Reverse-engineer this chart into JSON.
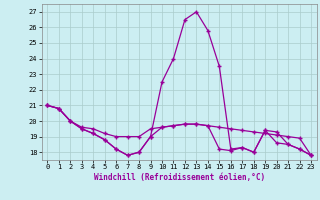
{
  "xlabel": "Windchill (Refroidissement éolien,°C)",
  "background_color": "#cceef2",
  "grid_color": "#aacccc",
  "line_color": "#990099",
  "xlim": [
    -0.5,
    23.5
  ],
  "ylim": [
    17.5,
    27.5
  ],
  "yticks": [
    18,
    19,
    20,
    21,
    22,
    23,
    24,
    25,
    26,
    27
  ],
  "xticks": [
    0,
    1,
    2,
    3,
    4,
    5,
    6,
    7,
    8,
    9,
    10,
    11,
    12,
    13,
    14,
    15,
    16,
    17,
    18,
    19,
    20,
    21,
    22,
    23
  ],
  "series1_x": [
    0,
    1,
    2,
    3,
    4,
    5,
    6,
    7,
    8,
    9,
    10,
    11,
    12,
    13,
    14,
    15,
    16,
    17,
    18,
    19,
    20,
    21,
    22,
    23
  ],
  "series1_y": [
    21.0,
    20.8,
    20.0,
    19.6,
    19.5,
    19.2,
    19.0,
    19.0,
    19.0,
    19.5,
    19.6,
    19.7,
    19.8,
    19.8,
    19.7,
    19.6,
    19.5,
    19.4,
    19.3,
    19.2,
    19.1,
    19.0,
    18.9,
    17.8
  ],
  "series2_x": [
    0,
    1,
    2,
    3,
    4,
    5,
    6,
    7,
    8,
    9,
    10,
    11,
    12,
    13,
    14,
    15,
    16,
    17,
    18,
    19,
    20,
    21,
    22,
    23
  ],
  "series2_y": [
    21.0,
    20.8,
    20.0,
    19.5,
    19.2,
    18.8,
    18.2,
    17.8,
    18.0,
    19.0,
    19.6,
    19.7,
    19.8,
    19.8,
    19.7,
    18.2,
    18.1,
    18.3,
    18.0,
    19.4,
    18.6,
    18.5,
    18.2,
    17.8
  ],
  "series3_x": [
    0,
    1,
    2,
    3,
    4,
    5,
    6,
    7,
    8,
    9,
    10,
    11,
    12,
    13,
    14,
    15,
    16,
    17,
    18,
    19,
    20,
    21,
    22,
    23
  ],
  "series3_y": [
    21.0,
    20.8,
    20.0,
    19.5,
    19.2,
    18.8,
    18.2,
    17.8,
    18.0,
    19.0,
    22.5,
    24.0,
    26.5,
    27.0,
    25.8,
    23.5,
    18.2,
    18.3,
    18.0,
    19.4,
    19.3,
    18.5,
    18.2,
    17.8
  ]
}
